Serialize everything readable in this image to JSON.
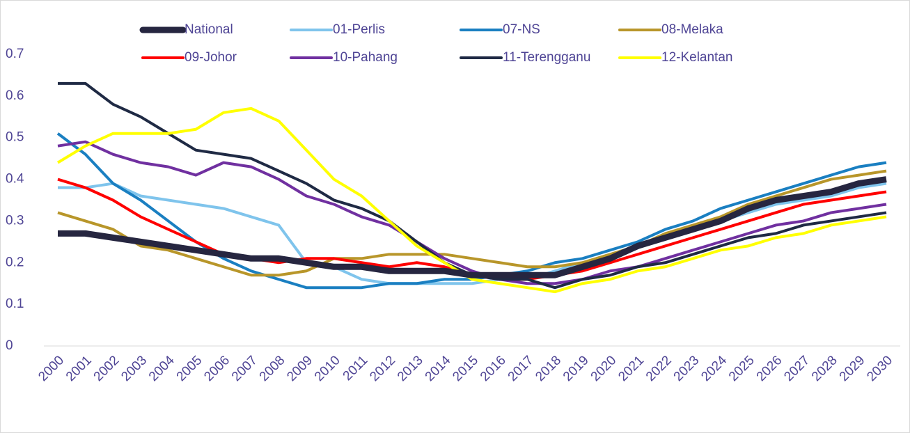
{
  "chart_data": {
    "type": "line",
    "categories": [
      "2000",
      "2001",
      "2002",
      "2003",
      "2004",
      "2005",
      "2006",
      "2007",
      "2008",
      "2009",
      "2010",
      "2011",
      "2012",
      "2013",
      "2014",
      "2015",
      "2016",
      "2017",
      "2018",
      "2019",
      "2020",
      "2021",
      "2022",
      "2023",
      "2024",
      "2025",
      "2026",
      "2027",
      "2028",
      "2029",
      "2030"
    ],
    "ylim": [
      0,
      0.7
    ],
    "yticks": [
      0,
      0.1,
      0.2,
      0.3,
      0.4,
      0.5,
      0.6,
      0.7
    ],
    "grid": false,
    "legend": "top",
    "series": [
      {
        "name": "National",
        "color": "#262640",
        "line_width": 9,
        "values": [
          0.27,
          0.27,
          0.26,
          0.25,
          0.24,
          0.23,
          0.22,
          0.21,
          0.21,
          0.2,
          0.19,
          0.19,
          0.18,
          0.18,
          0.18,
          0.17,
          0.17,
          0.17,
          0.17,
          0.19,
          0.21,
          0.24,
          0.26,
          0.28,
          0.3,
          0.33,
          0.35,
          0.36,
          0.37,
          0.39,
          0.4
        ]
      },
      {
        "name": "01-Perlis",
        "color": "#7fc4ec",
        "line_width": 4,
        "values": [
          0.38,
          0.38,
          0.39,
          0.36,
          0.35,
          0.34,
          0.33,
          0.31,
          0.29,
          0.2,
          0.19,
          0.16,
          0.15,
          0.15,
          0.15,
          0.15,
          0.16,
          0.16,
          0.18,
          0.2,
          0.22,
          0.24,
          0.26,
          0.28,
          0.3,
          0.32,
          0.34,
          0.35,
          0.36,
          0.38,
          0.39
        ]
      },
      {
        "name": "07-NS",
        "color": "#1a7fc1",
        "line_width": 4,
        "values": [
          0.51,
          0.46,
          0.39,
          0.35,
          0.3,
          0.25,
          0.21,
          0.18,
          0.16,
          0.14,
          0.14,
          0.14,
          0.15,
          0.15,
          0.16,
          0.16,
          0.17,
          0.18,
          0.2,
          0.21,
          0.23,
          0.25,
          0.28,
          0.3,
          0.33,
          0.35,
          0.37,
          0.39,
          0.41,
          0.43,
          0.44
        ]
      },
      {
        "name": "08-Melaka",
        "color": "#b8962a",
        "line_width": 4,
        "values": [
          0.32,
          0.3,
          0.28,
          0.24,
          0.23,
          0.21,
          0.19,
          0.17,
          0.17,
          0.18,
          0.21,
          0.21,
          0.22,
          0.22,
          0.22,
          0.21,
          0.2,
          0.19,
          0.19,
          0.2,
          0.22,
          0.24,
          0.27,
          0.29,
          0.31,
          0.34,
          0.36,
          0.38,
          0.4,
          0.41,
          0.42
        ]
      },
      {
        "name": "09-Johor",
        "color": "#ff0000",
        "line_width": 4,
        "values": [
          0.4,
          0.38,
          0.35,
          0.31,
          0.28,
          0.25,
          0.22,
          0.21,
          0.2,
          0.21,
          0.21,
          0.2,
          0.19,
          0.2,
          0.19,
          0.17,
          0.16,
          0.16,
          0.17,
          0.18,
          0.2,
          0.22,
          0.24,
          0.26,
          0.28,
          0.3,
          0.32,
          0.34,
          0.35,
          0.36,
          0.37
        ]
      },
      {
        "name": "10-Pahang",
        "color": "#7030a0",
        "line_width": 4,
        "values": [
          0.48,
          0.49,
          0.46,
          0.44,
          0.43,
          0.41,
          0.44,
          0.43,
          0.4,
          0.36,
          0.34,
          0.31,
          0.29,
          0.25,
          0.21,
          0.18,
          0.16,
          0.15,
          0.15,
          0.16,
          0.18,
          0.19,
          0.21,
          0.23,
          0.25,
          0.27,
          0.29,
          0.3,
          0.32,
          0.33,
          0.34
        ]
      },
      {
        "name": "11-Terengganu",
        "color": "#1f2a44",
        "line_width": 4,
        "values": [
          0.63,
          0.63,
          0.58,
          0.55,
          0.51,
          0.47,
          0.46,
          0.45,
          0.42,
          0.39,
          0.35,
          0.33,
          0.3,
          0.25,
          0.2,
          0.17,
          0.16,
          0.16,
          0.14,
          0.16,
          0.17,
          0.19,
          0.2,
          0.22,
          0.24,
          0.26,
          0.27,
          0.29,
          0.3,
          0.31,
          0.32
        ]
      },
      {
        "name": "12-Kelantan",
        "color": "#ffff00",
        "line_width": 4,
        "values": [
          0.44,
          0.48,
          0.51,
          0.51,
          0.51,
          0.52,
          0.56,
          0.57,
          0.54,
          0.47,
          0.4,
          0.36,
          0.3,
          0.24,
          0.2,
          0.16,
          0.15,
          0.14,
          0.13,
          0.15,
          0.16,
          0.18,
          0.19,
          0.21,
          0.23,
          0.24,
          0.26,
          0.27,
          0.29,
          0.3,
          0.31
        ]
      }
    ]
  }
}
